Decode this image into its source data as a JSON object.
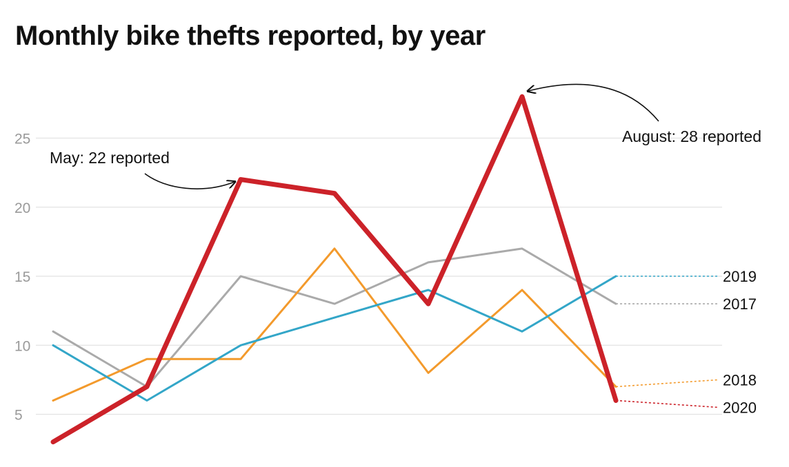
{
  "chart_data": {
    "type": "line",
    "title": "Monthly bike thefts reported, by year",
    "xlabel": "",
    "ylabel": "",
    "x": [
      1,
      2,
      3,
      4,
      5,
      6,
      7
    ],
    "ylim": [
      2.5,
      28.5
    ],
    "yticks": [
      5,
      10,
      15,
      20,
      25
    ],
    "grid": true,
    "series": [
      {
        "name": "2017",
        "color": "#aaaaaa",
        "values": [
          11,
          7,
          15,
          13,
          16,
          17,
          13
        ],
        "end_value": 13
      },
      {
        "name": "2018",
        "color": "#f39a2c",
        "values": [
          6,
          9,
          9,
          17,
          8,
          14,
          7
        ],
        "end_value": 7.5
      },
      {
        "name": "2019",
        "color": "#33a6c8",
        "values": [
          10,
          6,
          10,
          12,
          14,
          11,
          15
        ],
        "end_value": 15
      },
      {
        "name": "2020",
        "color": "#cc2229",
        "values": [
          3,
          7,
          22,
          21,
          13,
          28,
          6
        ],
        "end_value": 5.5,
        "highlight": true
      }
    ],
    "annotations": [
      {
        "text": "May: 22 reported",
        "series": "2020",
        "x": 3,
        "y": 22
      },
      {
        "text": "August: 28 reported",
        "series": "2020",
        "x": 6,
        "y": 28
      }
    ]
  }
}
